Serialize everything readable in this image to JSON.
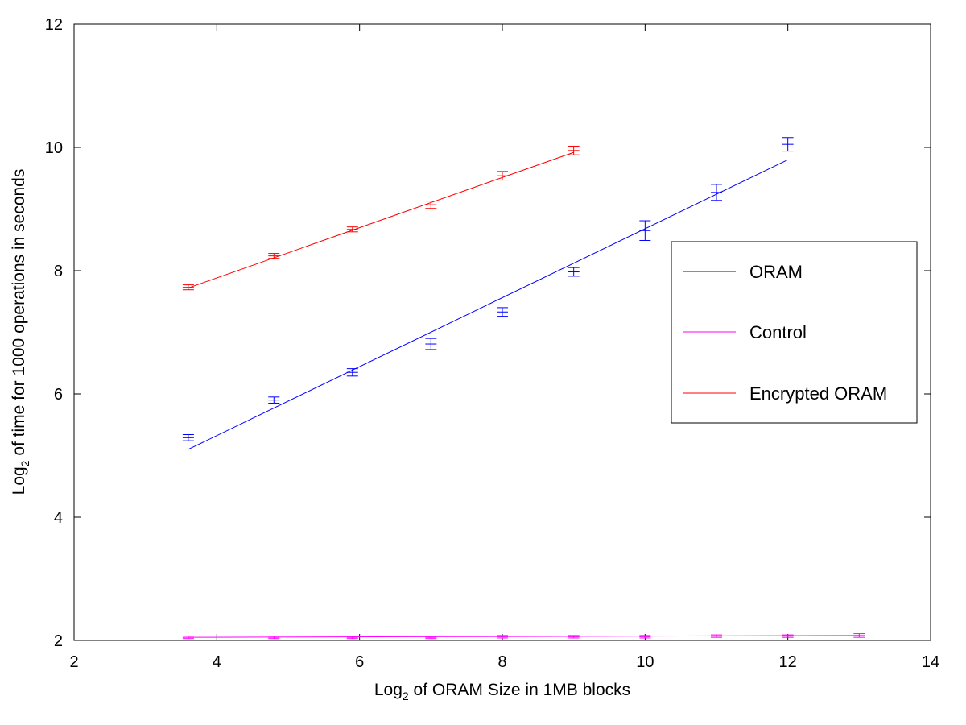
{
  "chart_data": {
    "type": "line",
    "title": "",
    "xlabel": {
      "base": "Log",
      "sub": "2",
      "rest": " of ORAM Size in 1MB blocks"
    },
    "ylabel": {
      "base": "Log",
      "sub": "2",
      "rest": " of time for 1000 operations in seconds"
    },
    "xlim": [
      2,
      14
    ],
    "ylim": [
      2,
      12
    ],
    "xticks": [
      2,
      4,
      6,
      8,
      10,
      12,
      14
    ],
    "yticks": [
      2,
      4,
      6,
      8,
      10,
      12
    ],
    "grid": false,
    "legend_position": "right",
    "series": [
      {
        "name": "ORAM",
        "color": "#0000ff",
        "points": [
          {
            "x": 3.6,
            "y": 5.29,
            "err": 0.05
          },
          {
            "x": 4.8,
            "y": 5.9,
            "err": 0.05
          },
          {
            "x": 5.9,
            "y": 6.35,
            "err": 0.06
          },
          {
            "x": 7.0,
            "y": 6.81,
            "err": 0.09
          },
          {
            "x": 8.0,
            "y": 7.33,
            "err": 0.07
          },
          {
            "x": 9.0,
            "y": 7.98,
            "err": 0.07
          },
          {
            "x": 10.0,
            "y": 8.65,
            "err": 0.16
          },
          {
            "x": 11.0,
            "y": 9.27,
            "err": 0.13
          },
          {
            "x": 12.0,
            "y": 10.05,
            "err": 0.11
          }
        ],
        "fit": [
          {
            "x": 3.6,
            "y": 5.1
          },
          {
            "x": 12.0,
            "y": 9.8
          }
        ]
      },
      {
        "name": "Control",
        "color": "#ff00ff",
        "points": [
          {
            "x": 3.6,
            "y": 2.05,
            "err": 0.02
          },
          {
            "x": 4.8,
            "y": 2.05,
            "err": 0.02
          },
          {
            "x": 5.9,
            "y": 2.05,
            "err": 0.02
          },
          {
            "x": 7.0,
            "y": 2.05,
            "err": 0.02
          },
          {
            "x": 8.0,
            "y": 2.06,
            "err": 0.02
          },
          {
            "x": 9.0,
            "y": 2.06,
            "err": 0.02
          },
          {
            "x": 10.0,
            "y": 2.06,
            "err": 0.02
          },
          {
            "x": 11.0,
            "y": 2.07,
            "err": 0.02
          },
          {
            "x": 12.0,
            "y": 2.07,
            "err": 0.02
          },
          {
            "x": 13.0,
            "y": 2.08,
            "err": 0.03
          }
        ],
        "fit": [
          {
            "x": 3.6,
            "y": 2.05
          },
          {
            "x": 13.0,
            "y": 2.08
          }
        ]
      },
      {
        "name": "Encrypted ORAM",
        "color": "#ff0000",
        "points": [
          {
            "x": 3.6,
            "y": 7.73,
            "err": 0.04
          },
          {
            "x": 4.8,
            "y": 8.24,
            "err": 0.04
          },
          {
            "x": 5.9,
            "y": 8.67,
            "err": 0.04
          },
          {
            "x": 7.0,
            "y": 9.07,
            "err": 0.06
          },
          {
            "x": 8.0,
            "y": 9.54,
            "err": 0.07
          },
          {
            "x": 9.0,
            "y": 9.95,
            "err": 0.07
          }
        ],
        "fit": [
          {
            "x": 3.6,
            "y": 7.72
          },
          {
            "x": 9.0,
            "y": 9.92
          }
        ]
      }
    ]
  }
}
